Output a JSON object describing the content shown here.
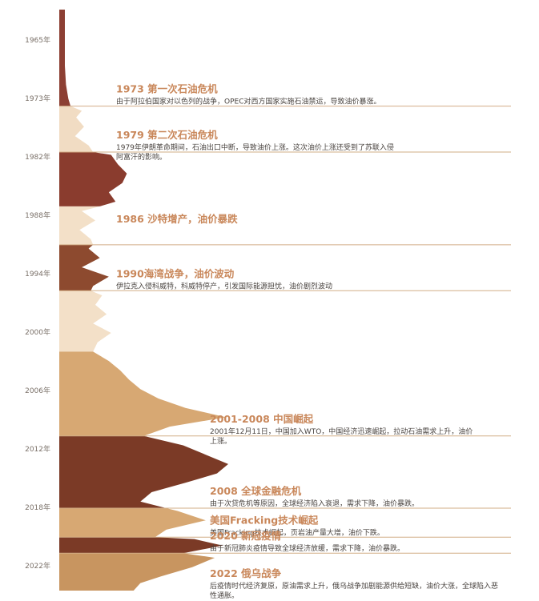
{
  "chart_data": {
    "type": "area",
    "orientation": "vertical-timeline",
    "y_range": [
      1962,
      2024
    ],
    "x_range": [
      0,
      150
    ],
    "yticks": [
      "1965年",
      "1973年",
      "1982年",
      "1988年",
      "1994年",
      "2000年",
      "2006年",
      "2012年",
      "2018年",
      "2022年"
    ],
    "periods": [
      {
        "start": 1962.0,
        "end": 1972.3,
        "color": "#8c3f33"
      },
      {
        "start": 1972.3,
        "end": 1977.2,
        "color": "#f1dcc3"
      },
      {
        "start": 1977.2,
        "end": 1983.0,
        "color": "#8a3c2e"
      },
      {
        "start": 1983.0,
        "end": 1987.1,
        "color": "#f3e0c8"
      },
      {
        "start": 1987.1,
        "end": 1992.0,
        "color": "#8d4a2f"
      },
      {
        "start": 1992.0,
        "end": 1998.5,
        "color": "#f3e0c8"
      },
      {
        "start": 1998.5,
        "end": 2007.5,
        "color": "#d7a873"
      },
      {
        "start": 2007.5,
        "end": 2015.2,
        "color": "#7b3a26"
      },
      {
        "start": 2015.2,
        "end": 2018.3,
        "color": "#d7a873"
      },
      {
        "start": 2018.3,
        "end": 2020.0,
        "color": "#7b3a26"
      },
      {
        "start": 2020.0,
        "end": 2024.0,
        "color": "#c89560"
      }
    ],
    "series": [
      {
        "y": [
          1962,
          1964,
          1966,
          1968,
          1970,
          1971.5,
          1972.3,
          1972.8,
          1973.5,
          1974.5,
          1975.5,
          1976.5,
          1977.2,
          1977.5,
          1978.5,
          1979.5,
          1980.5,
          1981.5,
          1982.5,
          1983.0,
          1983.5,
          1984.5,
          1985.5,
          1986.5,
          1987.1,
          1987.5,
          1988.5,
          1989.5,
          1990.5,
          1991.5,
          1992.0,
          1992.5,
          1993.5,
          1994.5,
          1995.5,
          1996.5,
          1997.5,
          1998.5,
          1999.5,
          2000.5,
          2001.5,
          2002.5,
          2003.5,
          2004.5,
          2005.5,
          2006.5,
          2007.5,
          2008.5,
          2009.5,
          2010.5,
          2011.5,
          2012.5,
          2013.5,
          2014.5,
          2015.2,
          2015.5,
          2016.5,
          2017.5,
          2018.3,
          2018.5,
          2019.2,
          2020.0,
          2020.5,
          2021.5,
          2022.5,
          2023.2,
          2024
        ],
        "x": [
          5,
          5,
          5,
          5,
          6,
          8,
          10,
          20,
          15,
          22,
          14,
          26,
          30,
          46,
          52,
          60,
          56,
          44,
          50,
          36,
          20,
          32,
          18,
          28,
          30,
          26,
          36,
          20,
          44,
          30,
          28,
          38,
          32,
          42,
          30,
          46,
          34,
          30,
          44,
          54,
          62,
          72,
          88,
          112,
          148,
          98,
          75,
          110,
          130,
          150,
          140,
          112,
          82,
          72,
          95,
          105,
          130,
          95,
          85,
          120,
          145,
          110,
          138,
          118,
          90,
          72,
          66
        ]
      }
    ],
    "events": [
      {
        "year": 1972.3,
        "title": "1973 第一次石油危机",
        "desc": "由于阿拉伯国家对以色列的战争，OPEC对西方国家实施石油禁运，导致油价暴涨。"
      },
      {
        "year": 1977.2,
        "title": "1979 第二次石油危机",
        "desc": "1979年伊朗革命期间，石油出口中断，导致油价上涨。这次油价上涨还受到了苏联入侵阿富汗的影响。"
      },
      {
        "year": 1987.1,
        "title": "1986 沙特增产，油价暴跌",
        "desc": ""
      },
      {
        "year": 1992.0,
        "title": "1990海湾战争，油价波动",
        "desc": "伊拉克入侵科威特，科威特停产，引发国际能源担忧，油价剧烈波动"
      },
      {
        "year": 2007.5,
        "title": "2001-2008 中国崛起",
        "desc": "2001年12月11日，中国加入WTO，中国经济迅速崛起，拉动石油需求上升，油价上涨。"
      },
      {
        "year": 2015.2,
        "title": "2008 全球金融危机",
        "desc": "由于次贷危机等原因，全球经济陷入衰退，需求下降，油价暴跌。"
      },
      {
        "year": 2018.3,
        "title": "美国Fracking技术崛起",
        "desc": "美国Fracking技术崛起，页岩油产量大增，油价下跌。"
      },
      {
        "year": 2020.0,
        "title": "2020 新冠疫情",
        "desc": "由于新冠肺炎疫情导致全球经济放缓，需求下降，油价暴跌。"
      },
      {
        "year": 2024.0,
        "title": "2022 俄乌战争",
        "desc": "后疫情时代经济复原，原油需求上升，俄乌战争加剧能源供给短缺，油价大涨，全球陷入恶性通胀。"
      }
    ]
  }
}
